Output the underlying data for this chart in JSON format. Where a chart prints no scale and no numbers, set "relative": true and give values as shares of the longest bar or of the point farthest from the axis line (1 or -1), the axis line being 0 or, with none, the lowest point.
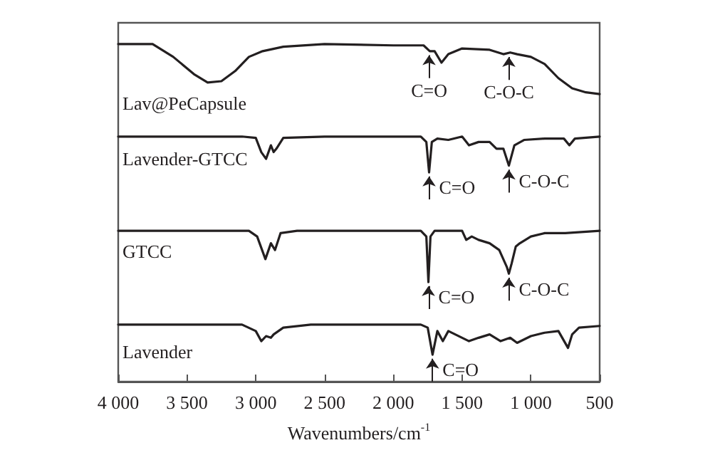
{
  "chart_data": {
    "type": "line",
    "relative": true,
    "xlabel": "Wavenumbers/cm$^{-1}$",
    "xlim": [
      4000,
      500
    ],
    "xticks": [
      {
        "value": 4000,
        "label": "4 000"
      },
      {
        "value": 3500,
        "label": "3 500"
      },
      {
        "value": 3000,
        "label": "3 000"
      },
      {
        "value": 2500,
        "label": "2 500"
      },
      {
        "value": 2000,
        "label": "2 000"
      },
      {
        "value": 1500,
        "label": "1 500"
      },
      {
        "value": 1000,
        "label": "1 000"
      },
      500
    ],
    "tick_labels": "x",
    "grid": false,
    "marker": "none",
    "line_style": "solid",
    "series": [
      {
        "name": "Lav@PeCapsule",
        "color": "#231f20",
        "x": [
          4000,
          3750,
          3600,
          3450,
          3350,
          3250,
          3150,
          3050,
          2950,
          2800,
          2500,
          2000,
          1780,
          1735,
          1700,
          1650,
          1600,
          1500,
          1300,
          1200,
          1150,
          1100,
          1000,
          900,
          800,
          700,
          600,
          500
        ],
        "values": [
          1.0,
          1.0,
          0.962,
          0.911,
          0.886,
          0.89,
          0.92,
          0.962,
          0.979,
          0.992,
          1.0,
          0.996,
          0.996,
          0.979,
          0.979,
          0.945,
          0.97,
          0.987,
          0.983,
          0.97,
          0.975,
          0.97,
          0.962,
          0.941,
          0.899,
          0.869,
          0.857,
          0.852
        ]
      },
      {
        "name": "Lavender-GTCC",
        "color": "#231f20",
        "x": [
          4000,
          3100,
          3000,
          2960,
          2925,
          2890,
          2870,
          2850,
          2800,
          2500,
          1800,
          1760,
          1740,
          1720,
          1680,
          1600,
          1500,
          1450,
          1380,
          1300,
          1250,
          1200,
          1160,
          1120,
          1050,
          900,
          760,
          720,
          680,
          500
        ],
        "values": [
          0.726,
          0.726,
          0.722,
          0.68,
          0.66,
          0.7,
          0.68,
          0.69,
          0.722,
          0.726,
          0.726,
          0.71,
          0.62,
          0.71,
          0.72,
          0.716,
          0.726,
          0.7,
          0.71,
          0.71,
          0.69,
          0.69,
          0.64,
          0.7,
          0.716,
          0.72,
          0.72,
          0.7,
          0.72,
          0.726
        ]
      },
      {
        "name": "GTCC",
        "color": "#231f20",
        "x": [
          4000,
          3050,
          2990,
          2930,
          2890,
          2860,
          2820,
          2700,
          1800,
          1760,
          1745,
          1730,
          1700,
          1500,
          1470,
          1430,
          1380,
          1300,
          1230,
          1175,
          1160,
          1140,
          1110,
          1080,
          1000,
          900,
          750,
          500
        ],
        "values": [
          0.447,
          0.447,
          0.43,
          0.363,
          0.41,
          0.39,
          0.44,
          0.447,
          0.447,
          0.43,
          0.295,
          0.43,
          0.447,
          0.447,
          0.42,
          0.43,
          0.42,
          0.41,
          0.39,
          0.34,
          0.32,
          0.35,
          0.4,
          0.41,
          0.43,
          0.44,
          0.44,
          0.447
        ]
      },
      {
        "name": "Lavender",
        "color": "#231f20",
        "x": [
          4000,
          3100,
          3000,
          2960,
          2925,
          2890,
          2870,
          2800,
          2600,
          1800,
          1750,
          1715,
          1680,
          1640,
          1600,
          1550,
          1450,
          1380,
          1300,
          1220,
          1150,
          1100,
          1000,
          900,
          800,
          730,
          700,
          650,
          500
        ],
        "values": [
          0.169,
          0.169,
          0.15,
          0.12,
          0.135,
          0.13,
          0.14,
          0.16,
          0.169,
          0.169,
          0.16,
          0.08,
          0.15,
          0.12,
          0.15,
          0.14,
          0.12,
          0.13,
          0.14,
          0.12,
          0.13,
          0.115,
          0.135,
          0.145,
          0.15,
          0.1,
          0.14,
          0.16,
          0.165
        ]
      }
    ],
    "annotations": [
      {
        "text": "C=O",
        "x": 1740,
        "y": 0.979
      },
      {
        "text": "C-O-C",
        "x": 1160,
        "y": 0.974
      },
      {
        "text": "C=O",
        "x": 1740,
        "y": 0.62
      },
      {
        "text": "C-O-C",
        "x": 1160,
        "y": 0.64
      },
      {
        "text": "C=O",
        "x": 1745,
        "y": 0.295
      },
      {
        "text": "C-O-C",
        "x": 1160,
        "y": 0.32
      },
      {
        "text": "C=O",
        "x": 1715,
        "y": 0.08
      }
    ]
  }
}
